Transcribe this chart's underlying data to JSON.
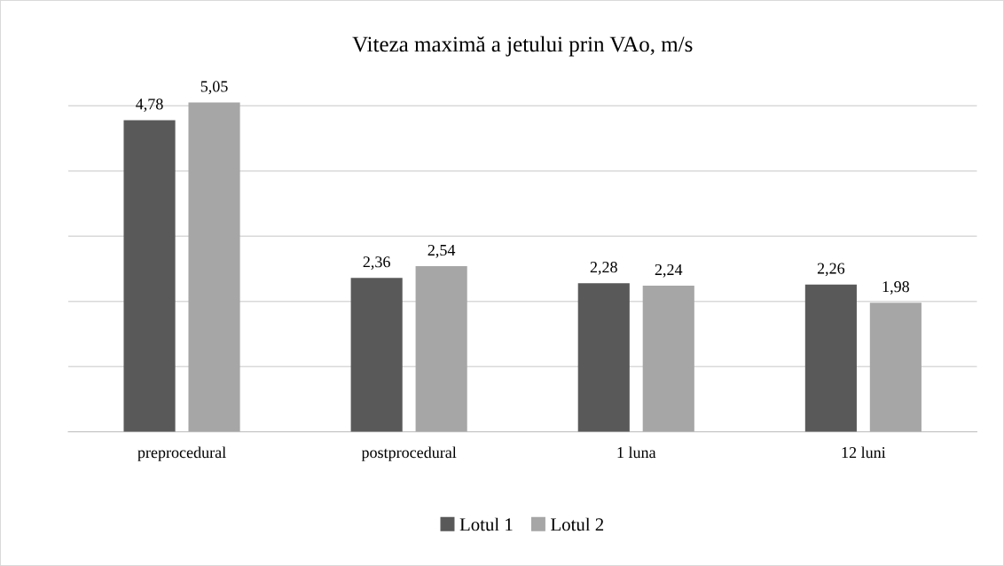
{
  "chart_data": {
    "type": "bar",
    "title": "Viteza maximă a jetului prin VAo, m/s",
    "categories": [
      "preprocedural",
      "postprocedural",
      "1 luna",
      "12 luni"
    ],
    "series": [
      {
        "name": "Lotul 1",
        "color": "#595959",
        "values": [
          4.78,
          2.36,
          2.28,
          2.26
        ],
        "value_labels": [
          "4,78",
          "2,36",
          "2,28",
          "2,26"
        ]
      },
      {
        "name": "Lotul 2",
        "color": "#a6a6a6",
        "values": [
          5.05,
          2.54,
          2.24,
          1.98
        ],
        "value_labels": [
          "5,05",
          "2,54",
          "2,24",
          "1,98"
        ]
      }
    ],
    "tick_labels": "x",
    "grid": "y",
    "legend": "bottom"
  }
}
